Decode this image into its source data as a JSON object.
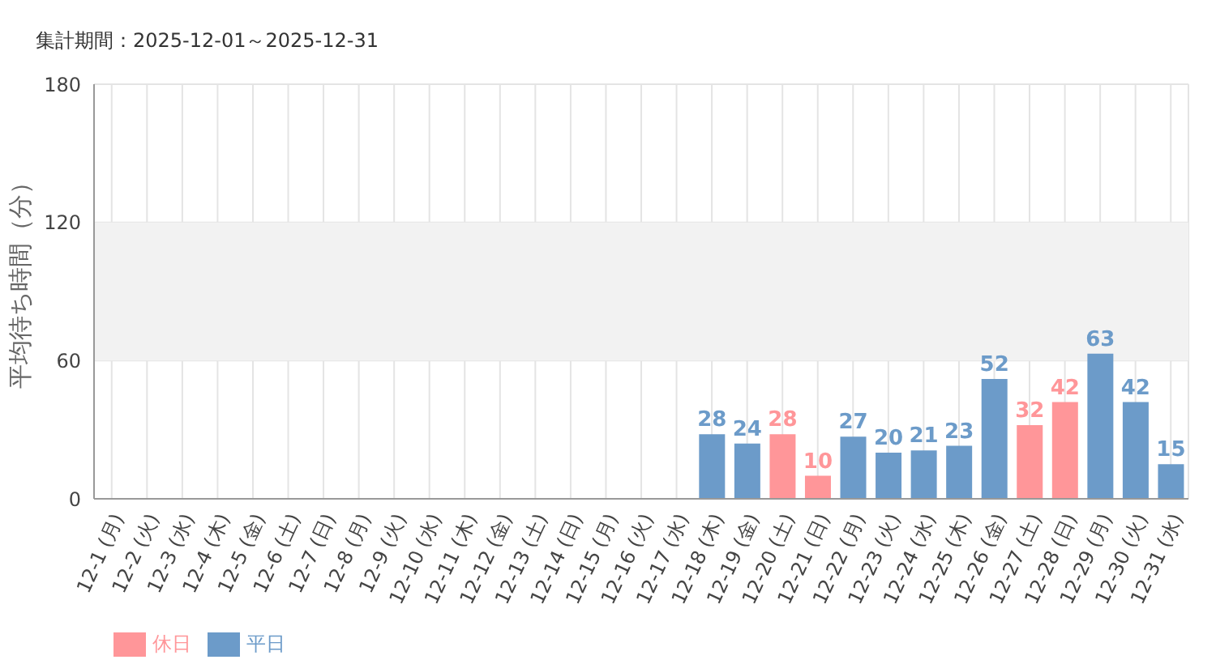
{
  "chart_data": {
    "type": "bar",
    "title": "集計期間：2025-12-01～2025-12-31",
    "ylabel": "平均待ち時間（分）",
    "categories": [
      "12-1 (月)",
      "12-2 (火)",
      "12-3 (水)",
      "12-4 (木)",
      "12-5 (金)",
      "12-6 (土)",
      "12-7 (日)",
      "12-8 (月)",
      "12-9 (火)",
      "12-10 (水)",
      "12-11 (木)",
      "12-12 (金)",
      "12-13 (土)",
      "12-14 (日)",
      "12-15 (月)",
      "12-16 (火)",
      "12-17 (水)",
      "12-18 (木)",
      "12-19 (金)",
      "12-20 (土)",
      "12-21 (日)",
      "12-22 (月)",
      "12-23 (火)",
      "12-24 (水)",
      "12-25 (木)",
      "12-26 (金)",
      "12-27 (土)",
      "12-28 (日)",
      "12-29 (月)",
      "12-30 (火)",
      "12-31 (水)"
    ],
    "series": [
      {
        "name": "平日",
        "color": "#6c9bc9",
        "values": [
          null,
          null,
          null,
          null,
          null,
          null,
          null,
          null,
          null,
          null,
          null,
          null,
          null,
          null,
          null,
          null,
          null,
          28,
          24,
          null,
          null,
          27,
          20,
          21,
          23,
          52,
          null,
          null,
          63,
          42,
          15
        ]
      },
      {
        "name": "休日",
        "color": "#ff9699",
        "values": [
          null,
          null,
          null,
          null,
          null,
          null,
          null,
          null,
          null,
          null,
          null,
          null,
          null,
          null,
          null,
          null,
          null,
          null,
          null,
          28,
          10,
          null,
          null,
          null,
          null,
          null,
          32,
          42,
          null,
          null,
          null
        ]
      }
    ],
    "ylim": [
      0,
      180
    ],
    "yticks": [
      0,
      60,
      120,
      180
    ],
    "grid": true,
    "legend": "bottom left",
    "data_labels": true,
    "bands": [
      {
        "axis": "y",
        "from": 60,
        "to": 120,
        "color": "#f2f2f2"
      }
    ]
  }
}
